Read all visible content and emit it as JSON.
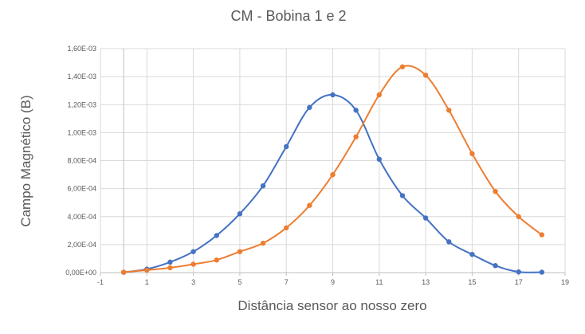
{
  "chart_data": {
    "type": "scatter",
    "title": "CM - Bobina 1 e 2",
    "xlabel": "Distância sensor ao nosso zero",
    "ylabel": "Campo Magnético (B)",
    "xlim": [
      -1,
      19
    ],
    "ylim": [
      0,
      0.0016
    ],
    "x_ticks": [
      "-1",
      "1",
      "3",
      "5",
      "7",
      "9",
      "11",
      "13",
      "15",
      "17",
      "19"
    ],
    "y_ticks": [
      "0,00E+00",
      "2,00E-04",
      "4,00E-04",
      "6,00E-04",
      "8,00E-04",
      "1,00E-03",
      "1,20E-03",
      "1,40E-03",
      "1,60E-03"
    ],
    "grid": true,
    "legend": "none",
    "smooth_lines": true,
    "series": [
      {
        "color": "#4472c4",
        "x": [
          0,
          1,
          2,
          3,
          4,
          5,
          6,
          7,
          8,
          9,
          10,
          11,
          12,
          13,
          14,
          15,
          16,
          17,
          18
        ],
        "values": [
          2e-06,
          2.5e-05,
          7.5e-05,
          0.00015,
          0.000265,
          0.00042,
          0.00062,
          0.0009,
          0.00118,
          0.00127,
          0.00116,
          0.00081,
          0.00055,
          0.00039,
          0.00022,
          0.00013,
          5e-05,
          5e-06,
          3e-06
        ]
      },
      {
        "color": "#ed7d31",
        "x": [
          0,
          1,
          2,
          3,
          4,
          5,
          6,
          7,
          8,
          9,
          10,
          11,
          12,
          13,
          14,
          15,
          16,
          17,
          18
        ],
        "values": [
          3e-06,
          1.8e-05,
          3.5e-05,
          6e-05,
          9e-05,
          0.00015,
          0.00021,
          0.00032,
          0.00048,
          0.0007,
          0.00097,
          0.00127,
          0.00147,
          0.00141,
          0.00116,
          0.00085,
          0.00058,
          0.0004,
          0.00027
        ]
      }
    ]
  }
}
